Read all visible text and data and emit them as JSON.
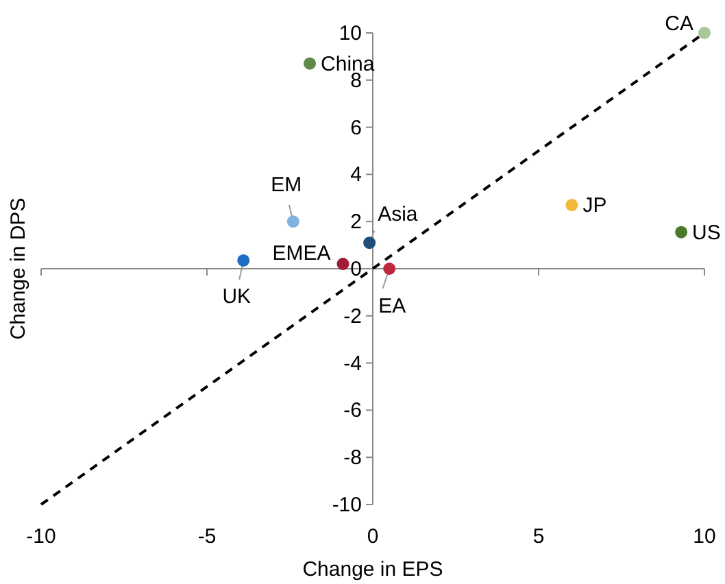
{
  "chart_data": {
    "type": "scatter",
    "xlabel": "Change in EPS",
    "ylabel": "Change in DPS",
    "xlim": [
      -10,
      10
    ],
    "ylim": [
      -10,
      10
    ],
    "xticks": [
      -10,
      -5,
      0,
      5,
      10
    ],
    "yticks": [
      -10,
      -8,
      -6,
      -4,
      -2,
      0,
      2,
      4,
      6,
      8,
      10
    ],
    "marker": "circle",
    "series": [
      {
        "name": "CA",
        "color": "#a9c79a",
        "x": [
          10
        ],
        "values": [
          10
        ]
      },
      {
        "name": "China",
        "color": "#5f8a47",
        "x": [
          -1.9
        ],
        "values": [
          8.7
        ]
      },
      {
        "name": "EM",
        "color": "#7fb3e0",
        "x": [
          -2.4
        ],
        "values": [
          2.0
        ]
      },
      {
        "name": "Asia",
        "color": "#1f4e79",
        "x": [
          -0.1
        ],
        "values": [
          1.1
        ]
      },
      {
        "name": "EMEA",
        "color": "#a01c36",
        "x": [
          -0.9
        ],
        "values": [
          0.2
        ]
      },
      {
        "name": "UK",
        "color": "#1e6fc4",
        "x": [
          -3.9
        ],
        "values": [
          0.35
        ]
      },
      {
        "name": "EA",
        "color": "#c0283f",
        "x": [
          0.5
        ],
        "values": [
          0
        ]
      },
      {
        "name": "JP",
        "color": "#f0b83c",
        "x": [
          6.0
        ],
        "values": [
          2.7
        ]
      },
      {
        "name": "US",
        "color": "#4a7a2a",
        "x": [
          9.3
        ],
        "values": [
          1.55
        ]
      },
      {
        "type": "line",
        "color": "#000000",
        "line_style": "dashed",
        "marker": "none",
        "x": [
          -10,
          10
        ],
        "values": [
          -10,
          10
        ]
      }
    ]
  }
}
